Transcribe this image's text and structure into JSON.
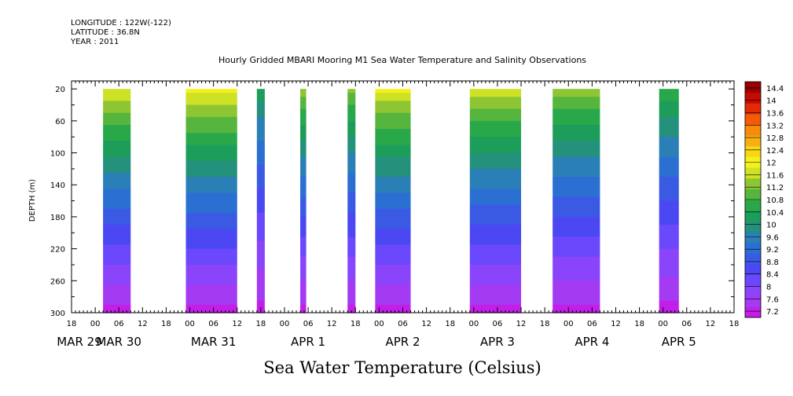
{
  "header": {
    "longitude": "LONGITUDE : 122W(-122)",
    "latitude": "LATITUDE : 36.8N",
    "year": "YEAR : 2011"
  },
  "chart_data": {
    "type": "heatmap",
    "title": "Hourly Gridded MBARI Mooring M1 Sea Water Temperature and Salinity Observations",
    "xlabel": "Sea Water Temperature (Celsius)",
    "ylabel": "DEPTH (m)",
    "ylim": [
      300,
      10
    ],
    "y_ticks": [
      20,
      60,
      100,
      140,
      180,
      220,
      260,
      300
    ],
    "x_range_hours": [
      -6,
      162
    ],
    "x_hour_ticks": [
      -6,
      0,
      6,
      12,
      18,
      24,
      30,
      36,
      42,
      48,
      54,
      60,
      66,
      72,
      78,
      84,
      90,
      96,
      102,
      108,
      114,
      120,
      126,
      132,
      138,
      144,
      150,
      156,
      162
    ],
    "x_hour_labels": [
      "18",
      "00",
      "06",
      "12",
      "18",
      "00",
      "06",
      "12",
      "18",
      "00",
      "06",
      "12",
      "18",
      "00",
      "06",
      "12",
      "18",
      "00",
      "06",
      "12",
      "18",
      "00",
      "06",
      "12",
      "18",
      "00",
      "06",
      "12",
      "18"
    ],
    "date_labels": [
      {
        "label": "MAR 29",
        "hour": -4
      },
      {
        "label": "MAR 30",
        "hour": 6
      },
      {
        "label": "MAR 31",
        "hour": 30
      },
      {
        "label": "APR  1",
        "hour": 54
      },
      {
        "label": "APR  2",
        "hour": 78
      },
      {
        "label": "APR  3",
        "hour": 102
      },
      {
        "label": "APR  4",
        "hour": 126
      },
      {
        "label": "APR  5",
        "hour": 148
      }
    ],
    "colorbar": {
      "levels": [
        7.2,
        7.6,
        8,
        8.4,
        8.8,
        9.2,
        9.6,
        10,
        10.4,
        10.8,
        11.2,
        11.6,
        12,
        12.4,
        12.8,
        13.2,
        13.6,
        14,
        14.4
      ],
      "min": 7.0,
      "max": 14.6,
      "colors": [
        "#c21fe8",
        "#a43af2",
        "#8a45fb",
        "#6b48fb",
        "#4b47f2",
        "#3a5ae4",
        "#2b6fd2",
        "#2a80b6",
        "#24917c",
        "#1c9e5a",
        "#29a84a",
        "#56b53c",
        "#8ec532",
        "#cde125",
        "#f4f01c",
        "#f6d716",
        "#f8b010",
        "#f98a0c",
        "#f45a08",
        "#e22a04",
        "#c40a02",
        "#9a0000"
      ],
      "color_levels": [
        7.2,
        7.6,
        8,
        8.4,
        8.8,
        9.2,
        9.6,
        10,
        10.4,
        10.8,
        11.2,
        11.6,
        12,
        12.4,
        12.8,
        13.2,
        13.6,
        14,
        14.4
      ]
    },
    "segments": [
      {
        "start_hour": 2,
        "end_hour": 9,
        "surface_temp": 11.9
      },
      {
        "start_hour": 23,
        "end_hour": 36,
        "surface_temp": 12.1
      },
      {
        "start_hour": 41,
        "end_hour": 43,
        "surface_temp": 10.4
      },
      {
        "start_hour": 52,
        "end_hour": 53.5,
        "surface_temp": 11.4
      },
      {
        "start_hour": 64,
        "end_hour": 66,
        "surface_temp": 11.3
      },
      {
        "start_hour": 71,
        "end_hour": 80,
        "surface_temp": 12.0
      },
      {
        "start_hour": 95,
        "end_hour": 108,
        "surface_temp": 11.8
      },
      {
        "start_hour": 116,
        "end_hour": 128,
        "surface_temp": 11.4
      },
      {
        "start_hour": 143,
        "end_hour": 148,
        "surface_temp": 10.8
      }
    ],
    "bottom_temp": 7.2
  }
}
